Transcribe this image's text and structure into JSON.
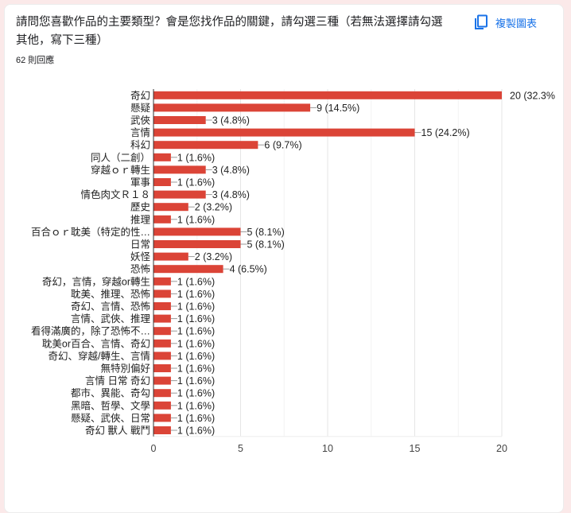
{
  "question": {
    "title": "請問您喜歡作品的主要類型？會是您找作品的關鍵，請勾選三種（若無法選擇請勾選其他，寫下三種）",
    "title_line1": "請問您喜歡作品的主要類型？會是您找作品的關鍵，請勾選三種（若無法選擇請勾選",
    "title_line2": "其他，寫下三種）",
    "response_count": "62 則回應",
    "copy_chart_label": "複製圖表",
    "copy_icon": "copy-icon"
  },
  "colors": {
    "bar": "#db4437",
    "accent": "#1a73e8",
    "background": "#fbe9e9",
    "grid": "#ececec",
    "text": "#202124"
  },
  "chart_data": {
    "type": "bar",
    "orientation": "horizontal",
    "title": "請問您喜歡作品的主要類型？會是您找作品的關鍵，請勾選三種（若無法選擇請勾選其他，寫下三種）",
    "xlabel": "",
    "ylabel": "",
    "xlim": [
      0,
      20
    ],
    "x_ticks": [
      0,
      5,
      10,
      15,
      20
    ],
    "grid": true,
    "legend": "none",
    "categories": [
      "奇幻",
      "懸疑",
      "武俠",
      "言情",
      "科幻",
      "同人（二創）",
      "穿越ｏｒ轉生",
      "軍事",
      "情色肉文Ｒ１８",
      "歷史",
      "推理",
      "百合ｏｒ耽美（特定的性…",
      "日常",
      "妖怪",
      "恐怖",
      "奇幻，言情，穿越or轉生",
      "耽美、推理、恐怖",
      "奇幻、言情、恐怖",
      "言情、武俠、推理",
      "看得滿廣的，除了恐怖不…",
      "耽美or百合、言情、奇幻",
      "奇幻、穿越/轉生、言情",
      "無特別偏好",
      "言情 日常 奇幻",
      "都市、異能、奇勾",
      "黑暗、哲學、文學",
      "懸疑、武俠、日常",
      "奇幻 獸人 戰鬥"
    ],
    "values": [
      20,
      9,
      3,
      15,
      6,
      1,
      3,
      1,
      3,
      2,
      1,
      5,
      5,
      2,
      4,
      1,
      1,
      1,
      1,
      1,
      1,
      1,
      1,
      1,
      1,
      1,
      1,
      1
    ],
    "labels": [
      "20 (32.3%",
      "9 (14.5%)",
      "3 (4.8%)",
      "15 (24.2%)",
      "6 (9.7%)",
      "1 (1.6%)",
      "3 (4.8%)",
      "1 (1.6%)",
      "3 (4.8%)",
      "2 (3.2%)",
      "1 (1.6%)",
      "5 (8.1%)",
      "5 (8.1%)",
      "2 (3.2%)",
      "4 (6.5%)",
      "1 (1.6%)",
      "1 (1.6%)",
      "1 (1.6%)",
      "1 (1.6%)",
      "1 (1.6%)",
      "1 (1.6%)",
      "1 (1.6%)",
      "1 (1.6%)",
      "1 (1.6%)",
      "1 (1.6%)",
      "1 (1.6%)",
      "1 (1.6%)",
      "1 (1.6%)"
    ],
    "percentages": [
      32.3,
      14.5,
      4.8,
      24.2,
      9.7,
      1.6,
      4.8,
      1.6,
      4.8,
      3.2,
      1.6,
      8.1,
      8.1,
      3.2,
      6.5,
      1.6,
      1.6,
      1.6,
      1.6,
      1.6,
      1.6,
      1.6,
      1.6,
      1.6,
      1.6,
      1.6,
      1.6,
      1.6
    ]
  }
}
